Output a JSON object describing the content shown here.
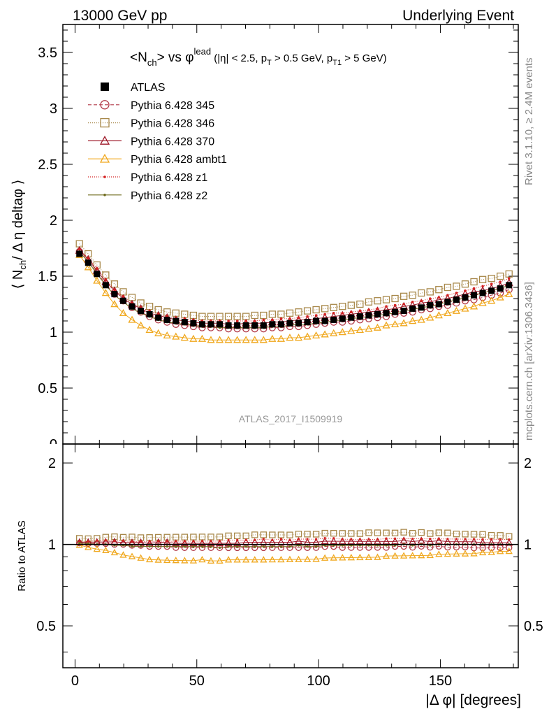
{
  "header": {
    "left": "13000 GeV pp",
    "right": "Underlying Event"
  },
  "side_labels": {
    "rivet": "Rivet 3.1.10, ≥ 2.4M events",
    "mcplots": "mcplots.cern.ch [arXiv:1306.3436]"
  },
  "watermark": "ATLAS_2017_I1509919",
  "title": {
    "main": "<N",
    "main_sub": "ch",
    "mid": "> vs φ",
    "mid_sup": "lead",
    "cuts_1": " (|η| < 2.5, p",
    "cuts_sub1": "T",
    "cuts_2": " > 0.5 GeV, p",
    "cuts_sub2": "T1",
    "cuts_3": " > 5 GeV)"
  },
  "ylabel_top": {
    "a": "⟨ N",
    "sub": "ch",
    "b": "/ Δ η deltaφ ⟩"
  },
  "ylabel_bottom": "Ratio to ATLAS",
  "xlabel": "|Δ φ| [degrees]",
  "colors": {
    "atlas": "#000000",
    "p345": "#b23a48",
    "p346": "#a8884a",
    "p370": "#9e1a2a",
    "ambt1": "#f0a81e",
    "z1": "#d42020",
    "z2": "#6e6a1c"
  },
  "chart_data": {
    "type": "scatter",
    "xlabel": "|Δ φ| [degrees]",
    "ylabel": "⟨ N_ch / Δ η deltaφ ⟩",
    "xlim": [
      -5,
      182
    ],
    "ylim": [
      0,
      3.75
    ],
    "ratio_ylim": [
      0.35,
      2.35
    ],
    "xticks": [
      0,
      50,
      100,
      150
    ],
    "yticks": [
      0.5,
      1,
      1.5,
      2,
      2.5,
      3,
      3.5
    ],
    "yticks_labels": [
      "0.5",
      "1",
      "1.5",
      "2",
      "2.5",
      "3",
      "3.5"
    ],
    "ratio_yticks": [
      0.5,
      1,
      2
    ],
    "ratio_yticks_labels": [
      "0.5",
      "1",
      "2"
    ],
    "legend_position": "top-left",
    "x_start": 1.8,
    "x_step": 3.6,
    "x_count": 50,
    "series": [
      {
        "name": "ATLAS",
        "values": [
          1.7,
          1.62,
          1.52,
          1.42,
          1.34,
          1.28,
          1.23,
          1.19,
          1.16,
          1.13,
          1.11,
          1.1,
          1.09,
          1.08,
          1.07,
          1.07,
          1.07,
          1.06,
          1.06,
          1.06,
          1.06,
          1.06,
          1.07,
          1.07,
          1.08,
          1.08,
          1.09,
          1.1,
          1.1,
          1.11,
          1.12,
          1.13,
          1.14,
          1.15,
          1.16,
          1.17,
          1.18,
          1.19,
          1.21,
          1.22,
          1.24,
          1.25,
          1.27,
          1.29,
          1.31,
          1.33,
          1.35,
          1.37,
          1.39,
          1.42
        ]
      },
      {
        "name": "Pythia 6.428 345",
        "values": [
          1.72,
          1.63,
          1.53,
          1.43,
          1.34,
          1.28,
          1.22,
          1.18,
          1.14,
          1.11,
          1.09,
          1.07,
          1.06,
          1.05,
          1.04,
          1.04,
          1.04,
          1.03,
          1.03,
          1.03,
          1.03,
          1.03,
          1.04,
          1.04,
          1.05,
          1.05,
          1.06,
          1.07,
          1.08,
          1.09,
          1.09,
          1.1,
          1.11,
          1.12,
          1.13,
          1.14,
          1.16,
          1.17,
          1.18,
          1.2,
          1.21,
          1.23,
          1.24,
          1.26,
          1.28,
          1.29,
          1.31,
          1.33,
          1.35,
          1.38
        ]
      },
      {
        "name": "Pythia 6.428 346",
        "values": [
          1.79,
          1.7,
          1.6,
          1.51,
          1.43,
          1.36,
          1.31,
          1.26,
          1.23,
          1.2,
          1.18,
          1.17,
          1.16,
          1.15,
          1.14,
          1.14,
          1.14,
          1.14,
          1.14,
          1.14,
          1.15,
          1.15,
          1.16,
          1.16,
          1.17,
          1.18,
          1.19,
          1.2,
          1.21,
          1.22,
          1.23,
          1.24,
          1.25,
          1.27,
          1.28,
          1.29,
          1.3,
          1.32,
          1.33,
          1.35,
          1.36,
          1.38,
          1.4,
          1.41,
          1.43,
          1.45,
          1.47,
          1.48,
          1.5,
          1.52
        ]
      },
      {
        "name": "Pythia 6.428 370",
        "values": [
          1.73,
          1.65,
          1.55,
          1.45,
          1.37,
          1.3,
          1.25,
          1.21,
          1.17,
          1.15,
          1.13,
          1.11,
          1.1,
          1.09,
          1.08,
          1.08,
          1.08,
          1.07,
          1.07,
          1.08,
          1.08,
          1.08,
          1.09,
          1.09,
          1.1,
          1.11,
          1.11,
          1.12,
          1.13,
          1.14,
          1.15,
          1.16,
          1.17,
          1.18,
          1.19,
          1.2,
          1.21,
          1.23,
          1.24,
          1.26,
          1.27,
          1.29,
          1.3,
          1.32,
          1.34,
          1.36,
          1.37,
          1.39,
          1.41,
          1.44
        ]
      },
      {
        "name": "Pythia 6.428 ambt1",
        "values": [
          1.69,
          1.58,
          1.46,
          1.35,
          1.25,
          1.17,
          1.11,
          1.06,
          1.02,
          0.99,
          0.97,
          0.96,
          0.95,
          0.94,
          0.94,
          0.93,
          0.93,
          0.93,
          0.93,
          0.93,
          0.93,
          0.93,
          0.94,
          0.94,
          0.95,
          0.95,
          0.96,
          0.97,
          0.98,
          0.99,
          1.0,
          1.01,
          1.02,
          1.03,
          1.04,
          1.06,
          1.07,
          1.08,
          1.1,
          1.11,
          1.13,
          1.15,
          1.17,
          1.19,
          1.21,
          1.23,
          1.26,
          1.28,
          1.31,
          1.34
        ]
      },
      {
        "name": "Pythia 6.428 z1",
        "values": [
          1.74,
          1.66,
          1.57,
          1.47,
          1.38,
          1.32,
          1.26,
          1.22,
          1.19,
          1.16,
          1.14,
          1.13,
          1.12,
          1.11,
          1.1,
          1.1,
          1.1,
          1.1,
          1.1,
          1.1,
          1.1,
          1.11,
          1.11,
          1.12,
          1.12,
          1.13,
          1.14,
          1.15,
          1.16,
          1.17,
          1.17,
          1.18,
          1.19,
          1.2,
          1.21,
          1.23,
          1.24,
          1.25,
          1.27,
          1.28,
          1.3,
          1.31,
          1.33,
          1.35,
          1.37,
          1.39,
          1.41,
          1.43,
          1.45,
          1.48
        ]
      },
      {
        "name": "Pythia 6.428 z2",
        "values": [
          1.72,
          1.63,
          1.52,
          1.42,
          1.33,
          1.27,
          1.21,
          1.17,
          1.14,
          1.11,
          1.09,
          1.08,
          1.07,
          1.06,
          1.05,
          1.05,
          1.04,
          1.04,
          1.04,
          1.04,
          1.04,
          1.04,
          1.05,
          1.05,
          1.06,
          1.07,
          1.07,
          1.08,
          1.09,
          1.1,
          1.11,
          1.12,
          1.13,
          1.14,
          1.15,
          1.16,
          1.17,
          1.19,
          1.2,
          1.22,
          1.23,
          1.25,
          1.27,
          1.29,
          1.31,
          1.33,
          1.35,
          1.37,
          1.39,
          1.42
        ]
      }
    ]
  }
}
